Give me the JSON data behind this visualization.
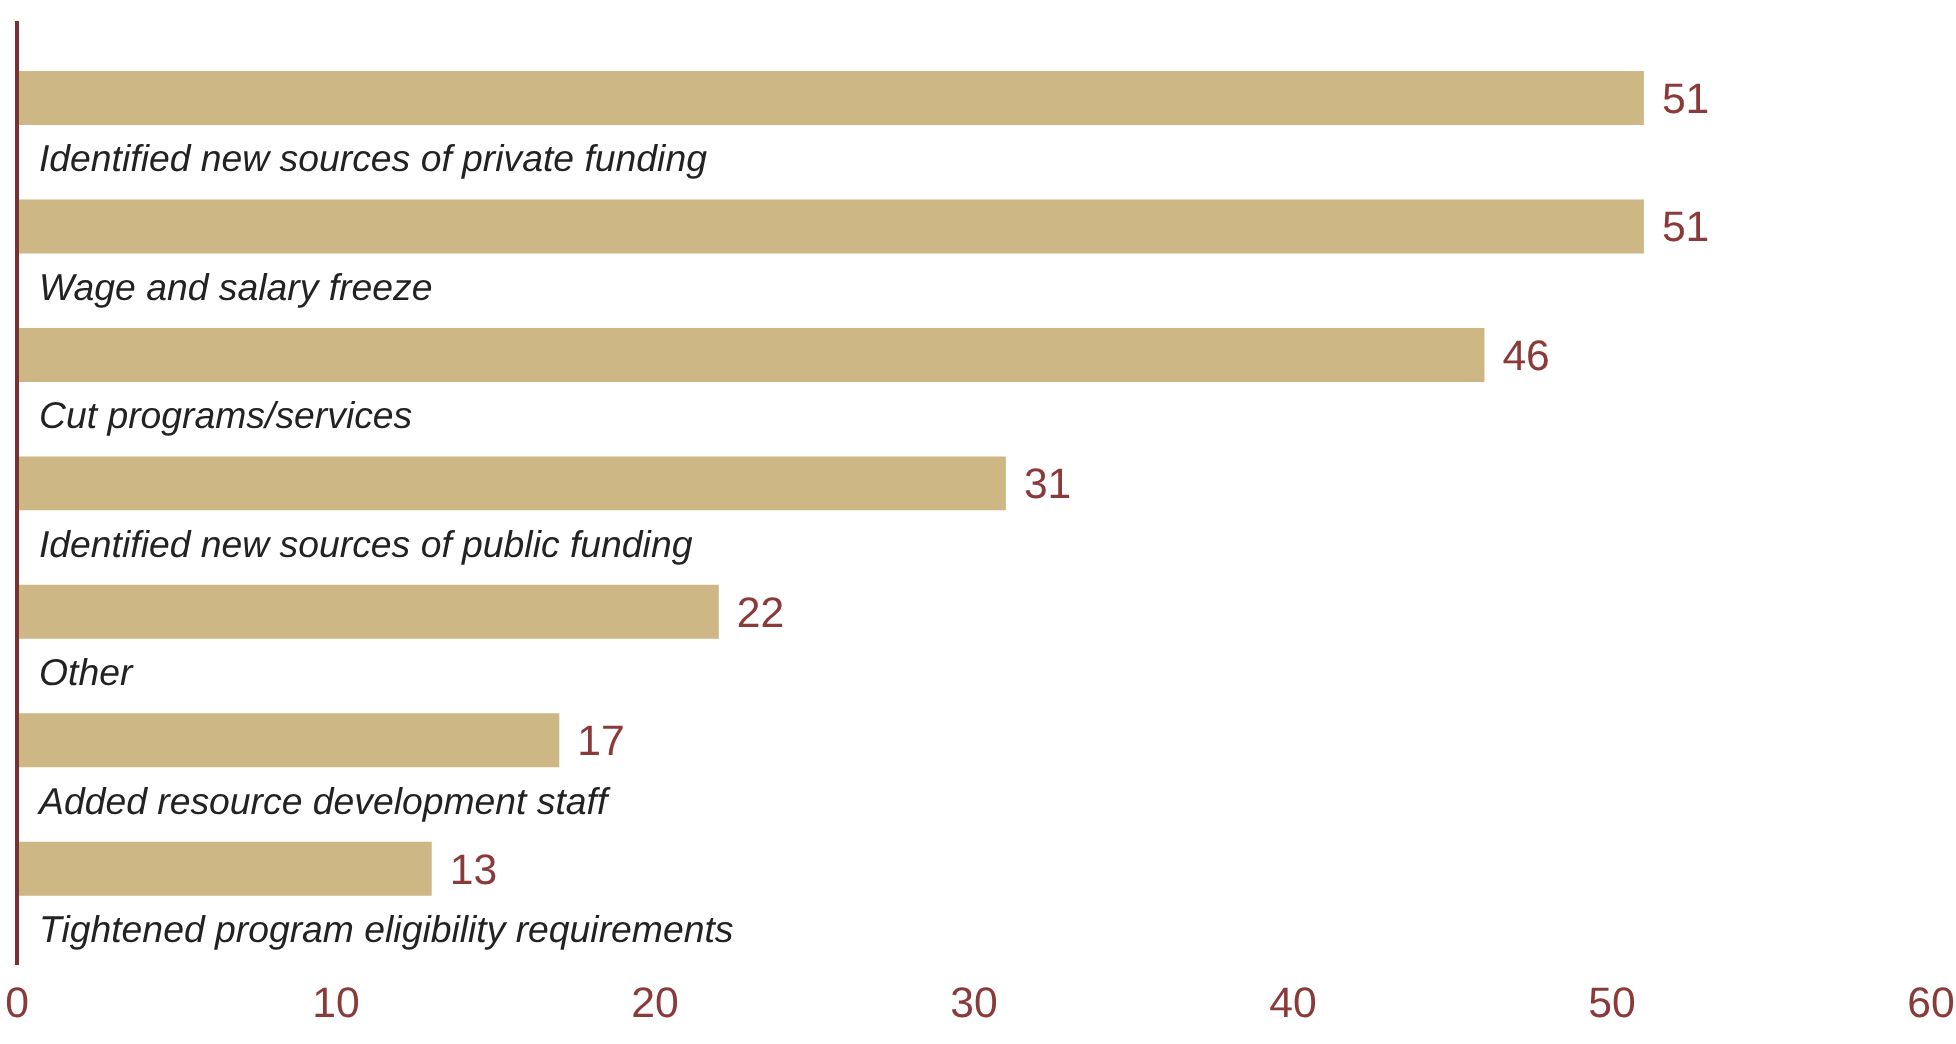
{
  "chart_data": {
    "type": "bar",
    "orientation": "horizontal",
    "categories": [
      "Identified new sources of private funding",
      "Wage and salary freeze",
      "Cut programs/services",
      "Identified new sources of public funding",
      "Other",
      "Added resource development staff",
      "Tightened program eligibility requirements"
    ],
    "values": [
      51,
      51,
      46,
      31,
      22,
      17,
      13
    ],
    "color": "#cdb784",
    "xlim": [
      0,
      60
    ],
    "xticks": [
      0,
      10,
      20,
      30,
      40,
      50,
      60
    ],
    "data_labels": true,
    "grid": false
  }
}
